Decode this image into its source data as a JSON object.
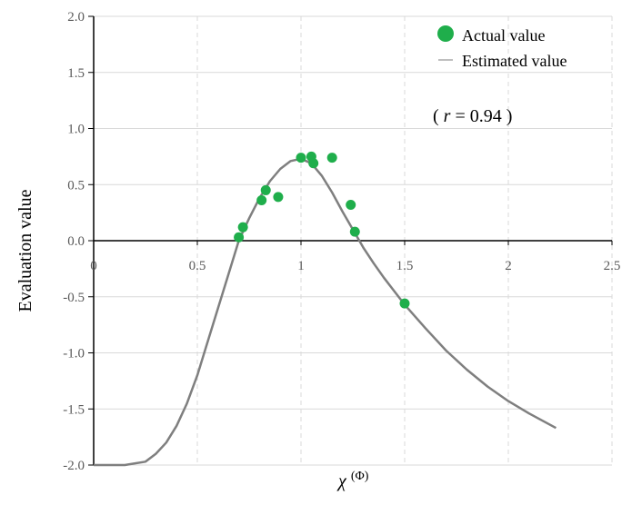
{
  "chart_data": {
    "type": "scatter",
    "xlabel": "χ",
    "xlabel_superscript": "(Φ)",
    "ylabel": "Evaluation value",
    "xlim": [
      0,
      2.5
    ],
    "ylim": [
      -2.0,
      2.0
    ],
    "x_ticks": [
      "0",
      "0.5",
      "1",
      "1.5",
      "2",
      "2.5"
    ],
    "y_ticks": [
      "2.0",
      "1.5",
      "1.0",
      "0.5",
      "0.0",
      "-0.5",
      "-1.0",
      "-1.5",
      "-2.0"
    ],
    "grid": true,
    "legend_position": "top-right",
    "annotation": {
      "prefix": "( ",
      "variable": "r",
      "rest": " = 0.94 )"
    },
    "colors": {
      "points": "#1fae4b",
      "curve": "#7f7f7f",
      "axis": "#000000",
      "grid": "#d9d9d9"
    },
    "series": [
      {
        "name": "Actual value",
        "kind": "scatter",
        "points": [
          {
            "x": 0.7,
            "y": 0.03
          },
          {
            "x": 0.72,
            "y": 0.12
          },
          {
            "x": 0.81,
            "y": 0.36
          },
          {
            "x": 0.83,
            "y": 0.45
          },
          {
            "x": 0.89,
            "y": 0.39
          },
          {
            "x": 1.0,
            "y": 0.74
          },
          {
            "x": 1.05,
            "y": 0.75
          },
          {
            "x": 1.06,
            "y": 0.69
          },
          {
            "x": 1.15,
            "y": 0.74
          },
          {
            "x": 1.24,
            "y": 0.32
          },
          {
            "x": 1.26,
            "y": 0.08
          },
          {
            "x": 1.5,
            "y": -0.56
          }
        ]
      },
      {
        "name": "Estimated value",
        "kind": "line",
        "points": [
          {
            "x": 0.0,
            "y": -2.0
          },
          {
            "x": 0.15,
            "y": -2.0
          },
          {
            "x": 0.25,
            "y": -1.97
          },
          {
            "x": 0.3,
            "y": -1.9
          },
          {
            "x": 0.35,
            "y": -1.8
          },
          {
            "x": 0.4,
            "y": -1.65
          },
          {
            "x": 0.45,
            "y": -1.45
          },
          {
            "x": 0.5,
            "y": -1.2
          },
          {
            "x": 0.55,
            "y": -0.9
          },
          {
            "x": 0.6,
            "y": -0.6
          },
          {
            "x": 0.65,
            "y": -0.3
          },
          {
            "x": 0.7,
            "y": 0.0
          },
          {
            "x": 0.75,
            "y": 0.2
          },
          {
            "x": 0.8,
            "y": 0.38
          },
          {
            "x": 0.85,
            "y": 0.53
          },
          {
            "x": 0.9,
            "y": 0.64
          },
          {
            "x": 0.95,
            "y": 0.71
          },
          {
            "x": 1.0,
            "y": 0.73
          },
          {
            "x": 1.05,
            "y": 0.69
          },
          {
            "x": 1.1,
            "y": 0.58
          },
          {
            "x": 1.15,
            "y": 0.43
          },
          {
            "x": 1.2,
            "y": 0.26
          },
          {
            "x": 1.25,
            "y": 0.1
          },
          {
            "x": 1.3,
            "y": -0.06
          },
          {
            "x": 1.35,
            "y": -0.2
          },
          {
            "x": 1.4,
            "y": -0.33
          },
          {
            "x": 1.45,
            "y": -0.45
          },
          {
            "x": 1.5,
            "y": -0.57
          },
          {
            "x": 1.6,
            "y": -0.78
          },
          {
            "x": 1.7,
            "y": -0.98
          },
          {
            "x": 1.8,
            "y": -1.15
          },
          {
            "x": 1.9,
            "y": -1.3
          },
          {
            "x": 2.0,
            "y": -1.43
          },
          {
            "x": 2.1,
            "y": -1.54
          },
          {
            "x": 2.23,
            "y": -1.67
          }
        ]
      }
    ]
  }
}
